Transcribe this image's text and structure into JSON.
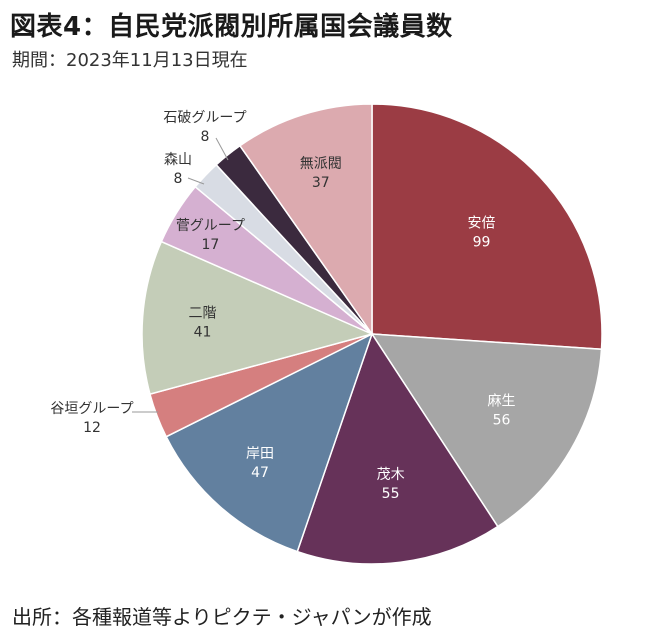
{
  "header": {
    "title": "図表4：自民党派閥別所属国会議員数",
    "subtitle": "期間：2023年11月13日現在"
  },
  "footer": {
    "source": "出所：各種報道等よりピクテ・ジャパンが作成"
  },
  "chart_data": {
    "type": "pie",
    "title": "図表4：自民党派閥別所属国会議員数",
    "subtitle": "期間：2023年11月13日現在",
    "start": "12 o'clock",
    "direction": "clockwise",
    "slices": [
      {
        "label": "安倍",
        "value": 99,
        "color": "#9b3c44",
        "label_color": "#ffffff",
        "label_position": "inside"
      },
      {
        "label": "麻生",
        "value": 56,
        "color": "#a6a6a6",
        "label_color": "#ffffff",
        "label_position": "inside"
      },
      {
        "label": "茂木",
        "value": 55,
        "color": "#663259",
        "label_color": "#ffffff",
        "label_position": "inside"
      },
      {
        "label": "岸田",
        "value": 47,
        "color": "#62809f",
        "label_color": "#ffffff",
        "label_position": "inside"
      },
      {
        "label": "谷垣グループ",
        "value": 12,
        "color": "#d57f7f",
        "label_color": "#333333",
        "label_position": "outside"
      },
      {
        "label": "二階",
        "value": 41,
        "color": "#c4cdb8",
        "label_color": "#333333",
        "label_position": "inside"
      },
      {
        "label": "菅グループ",
        "value": 17,
        "color": "#d5b0d1",
        "label_color": "#333333",
        "label_position": "inside"
      },
      {
        "label": "森山",
        "value": 8,
        "color": "#d8dce4",
        "label_color": "#333333",
        "label_position": "outside"
      },
      {
        "label": "石破グループ",
        "value": 8,
        "color": "#3b2a3e",
        "label_color": "#333333",
        "label_position": "outside"
      },
      {
        "label": "無派閥",
        "value": 37,
        "color": "#dcaaaf",
        "label_color": "#333333",
        "label_position": "inside"
      }
    ]
  }
}
